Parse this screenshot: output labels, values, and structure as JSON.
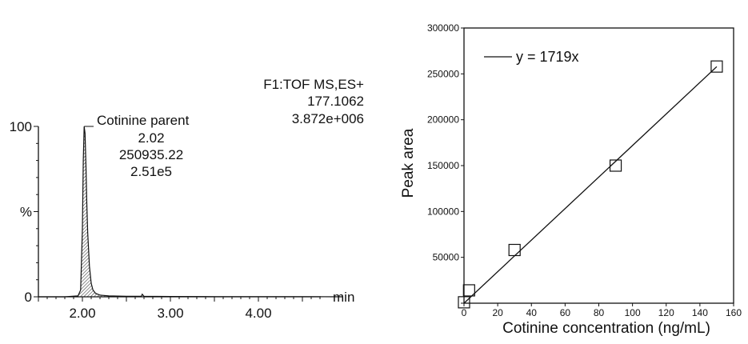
{
  "chart_data": [
    {
      "type": "line",
      "xlabel": "min",
      "ylabel": "%",
      "xlim": [
        1.5,
        4.95
      ],
      "ylim": [
        0,
        100
      ],
      "x_ticks": [
        "2.00",
        "3.00",
        "4.00"
      ],
      "y_ticks": [
        "0",
        "100"
      ],
      "header": [
        "F1:TOF MS,ES+",
        "177.1062",
        "3.872e+006"
      ],
      "peak": {
        "name": "Cotinine parent",
        "retention_time": "2.02",
        "area": "250935.22",
        "height": "2.51e5",
        "x": 2.02,
        "y": 100
      },
      "series": [
        {
          "x": [
            1.5,
            1.8,
            1.95,
            1.98,
            2.0,
            2.01,
            2.02,
            2.03,
            2.04,
            2.05,
            2.06,
            2.08,
            2.1,
            2.12,
            2.15,
            2.2,
            2.3,
            2.5,
            2.67,
            2.68,
            2.7,
            3.0,
            3.5,
            4.0,
            4.5,
            4.95
          ],
          "values": [
            0,
            0,
            0.5,
            4,
            40,
            80,
            100,
            96,
            78,
            55,
            38,
            18,
            8,
            4,
            2,
            1,
            0.5,
            0.3,
            0.3,
            1.5,
            0.3,
            0.2,
            0.1,
            0.1,
            0.1,
            0
          ]
        }
      ]
    },
    {
      "type": "scatter",
      "xlabel": "Cotinine concentration (ng/mL)",
      "ylabel": "Peak area",
      "xlim": [
        0,
        160
      ],
      "ylim": [
        0,
        300000
      ],
      "x_ticks": [
        0,
        20,
        40,
        60,
        80,
        100,
        120,
        140,
        160
      ],
      "y_ticks": [
        0,
        50000,
        100000,
        150000,
        200000,
        250000,
        300000
      ],
      "legend": "y = 1719x",
      "legend_position": "top-left",
      "series": [
        {
          "x": [
            0,
            3,
            30,
            90,
            150
          ],
          "values": [
            1000,
            14000,
            58000,
            150000,
            258000
          ]
        }
      ],
      "fit": {
        "slope": 1719,
        "x_range": [
          0,
          150
        ]
      }
    }
  ]
}
